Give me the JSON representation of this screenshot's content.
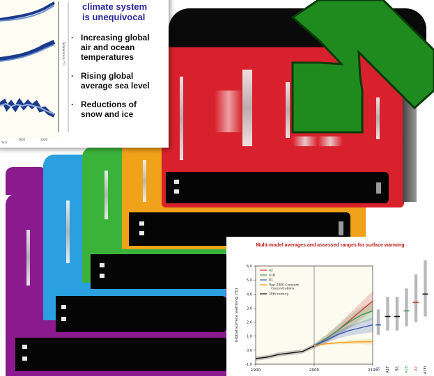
{
  "slide": {
    "heading_lines": [
      "climate system",
      "is unequivocal"
    ],
    "bullets": [
      [
        "Increasing global",
        "air and ocean",
        "temperatures"
      ],
      [
        "Rising global",
        "average sea level"
      ],
      [
        "Reductions of",
        "snow and ice"
      ]
    ],
    "bullet_mark": "·",
    "mini_axis_year_left": "Year",
    "mini_axis_year_mid": "1900",
    "mini_axis_year_right": "2000"
  },
  "colors": {
    "purple": "#8b1a8e",
    "blue": "#2aa0e0",
    "green": "#3bb33b",
    "orange": "#f0a21a",
    "red": "#d8212c",
    "arrow": "#1f8b1f",
    "bar": "#050505"
  },
  "arrow_icon": "green-arrow-icon",
  "chart_data": {
    "type": "line",
    "title": "Multi-model averages and assessed ranges for surface warming",
    "ylabel": "Global surface warming (°C)",
    "xlabel": "",
    "ylim": [
      -1.0,
      6.0
    ],
    "xlim": [
      1900,
      2100
    ],
    "y_ticks": [
      "6.0",
      "5.0",
      "4.0",
      "3.0",
      "2.0",
      "1.0",
      "0.0",
      "-1.0"
    ],
    "x_ticks": [
      "1900",
      "2000",
      "2100"
    ],
    "legend": [
      "A2",
      "A1B",
      "B1",
      "Year 2000 Constant Concentrations",
      "20th century"
    ],
    "legend_placement": "top-left",
    "series": [
      {
        "name": "20th century",
        "color": "#111111",
        "x": [
          1900,
          1920,
          1940,
          1960,
          1980,
          2000
        ],
        "y": [
          -0.6,
          -0.5,
          -0.3,
          -0.2,
          -0.1,
          0.3
        ]
      },
      {
        "name": "A2",
        "color": "#d33a3a",
        "x": [
          2000,
          2020,
          2040,
          2060,
          2080,
          2100
        ],
        "y": [
          0.3,
          0.8,
          1.4,
          2.1,
          2.8,
          3.5
        ]
      },
      {
        "name": "A1B",
        "color": "#3a9a58",
        "x": [
          2000,
          2020,
          2040,
          2060,
          2080,
          2100
        ],
        "y": [
          0.3,
          0.8,
          1.4,
          2.0,
          2.5,
          2.8
        ]
      },
      {
        "name": "B1",
        "color": "#3a55b8",
        "x": [
          2000,
          2020,
          2040,
          2060,
          2080,
          2100
        ],
        "y": [
          0.3,
          0.7,
          1.1,
          1.4,
          1.6,
          1.8
        ]
      },
      {
        "name": "Year 2000 Constant Concentrations",
        "color": "#f0a020",
        "x": [
          2000,
          2020,
          2040,
          2060,
          2080,
          2100
        ],
        "y": [
          0.3,
          0.45,
          0.52,
          0.57,
          0.6,
          0.6
        ]
      }
    ],
    "ranges": [
      {
        "name": "B1",
        "color": "#3a55b8",
        "low": 1.1,
        "best": 1.8,
        "high": 2.9
      },
      {
        "name": "A1T",
        "color": "#111111",
        "low": 1.4,
        "best": 2.4,
        "high": 3.8
      },
      {
        "name": "B2",
        "color": "#111111",
        "low": 1.4,
        "best": 2.4,
        "high": 3.8
      },
      {
        "name": "A1B",
        "color": "#3a9a58",
        "low": 1.7,
        "best": 2.8,
        "high": 4.4
      },
      {
        "name": "A2",
        "color": "#d33a3a",
        "low": 2.0,
        "best": 3.4,
        "high": 5.4
      },
      {
        "name": "A1FI",
        "color": "#111111",
        "low": 2.4,
        "best": 4.0,
        "high": 6.4
      }
    ]
  }
}
